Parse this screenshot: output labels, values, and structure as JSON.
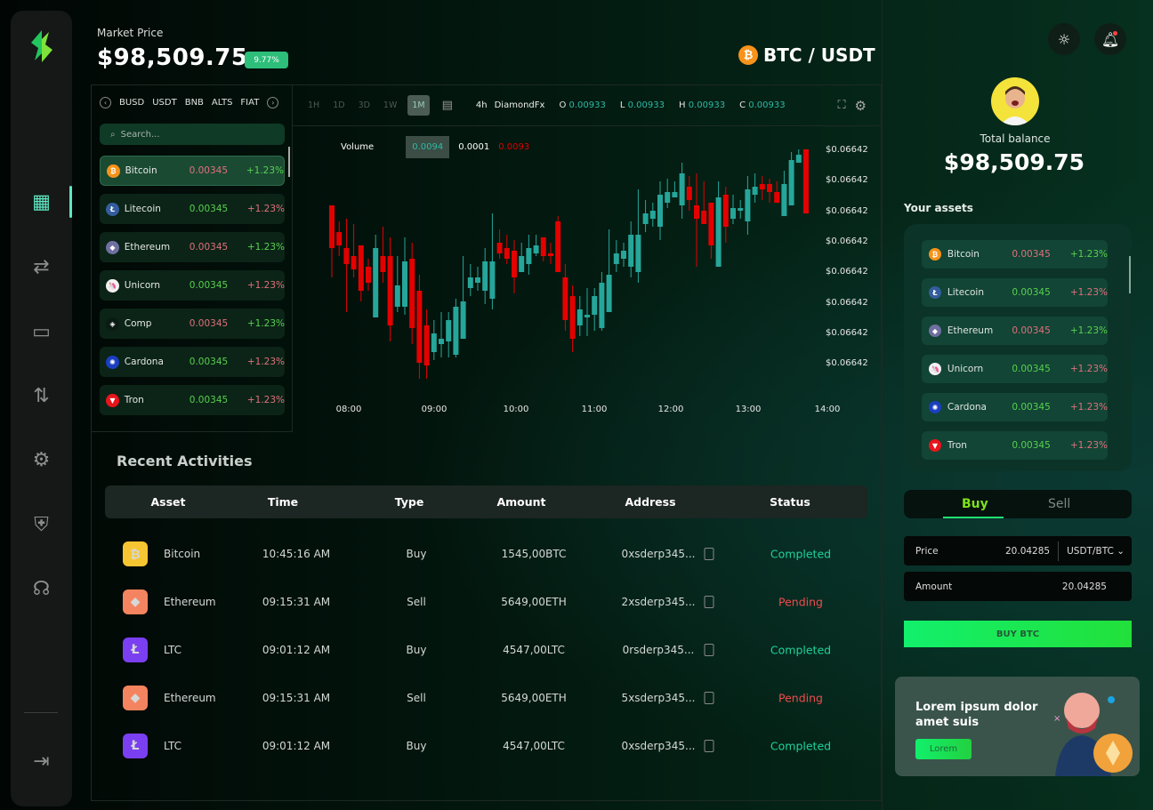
{
  "header": {
    "market_price_label": "Market Price",
    "market_price": "$98,509.75",
    "change_badge": "9.77%",
    "pair": "BTC / USDT",
    "pair_icon": "bitcoin-icon"
  },
  "sidebar": {
    "items": [
      {
        "icon": "dashboard-icon",
        "active": true
      },
      {
        "icon": "transfer-icon"
      },
      {
        "icon": "wallet-icon"
      },
      {
        "icon": "exchange-icon"
      },
      {
        "icon": "settings-icon"
      },
      {
        "icon": "shield-icon"
      },
      {
        "icon": "support-icon"
      }
    ],
    "logout_icon": "logout-icon"
  },
  "markets": {
    "tabs": [
      "BUSD",
      "USDT",
      "BNB",
      "ALTS",
      "FIAT"
    ],
    "search_placeholder": "Search...",
    "coins": [
      {
        "name": "Bitcoin",
        "price": "0.00345",
        "change": "+1.23%",
        "price_color": "red",
        "change_color": "green",
        "icon_color": "#f7931a",
        "glyph": "₿"
      },
      {
        "name": "Litecoin",
        "price": "0.00345",
        "change": "+1.23%",
        "price_color": "green",
        "change_color": "red",
        "icon_color": "#345d9d",
        "glyph": "Ł"
      },
      {
        "name": "Ethereum",
        "price": "0.00345",
        "change": "+1.23%",
        "price_color": "red",
        "change_color": "green",
        "icon_color": "#6f6fa0",
        "glyph": "◆"
      },
      {
        "name": "Unicorn",
        "price": "0.00345",
        "change": "+1.23%",
        "price_color": "green",
        "change_color": "red",
        "icon_color": "#f5f0f2",
        "glyph": "🦄"
      },
      {
        "name": "Comp",
        "price": "0.00345",
        "change": "+1.23%",
        "price_color": "red",
        "change_color": "green",
        "icon_color": "#0a1a14",
        "glyph": "◈"
      },
      {
        "name": "Cardona",
        "price": "0.00345",
        "change": "+1.23%",
        "price_color": "green",
        "change_color": "red",
        "icon_color": "#1b3fc0",
        "glyph": "✺"
      },
      {
        "name": "Tron",
        "price": "0.00345",
        "change": "+1.23%",
        "price_color": "green",
        "change_color": "red",
        "icon_color": "#e8141c",
        "glyph": "▼"
      }
    ]
  },
  "chart_toolbar": {
    "timeframes": [
      "1H",
      "1D",
      "3D",
      "1W",
      "1M"
    ],
    "active_timeframe": "1M",
    "interval": "4h",
    "source": "DiamondFx",
    "o_label": "O",
    "o": "0.00933",
    "l_label": "L",
    "l": "0.00933",
    "h_label": "H",
    "h": "0.00933",
    "c_label": "C",
    "c": "0.00933"
  },
  "chart_data": {
    "type": "candlestick",
    "volume_label": "Volume",
    "volume_values": [
      "0.0094",
      "0.0001",
      "0.0093"
    ],
    "y_tick_labels": [
      "$0.06642",
      "$0.06642",
      "$0.06642",
      "$0.06642",
      "$0.06642",
      "$0.06642",
      "$0.06642",
      "$0.06642"
    ],
    "x_tick_labels": [
      "08:00",
      "09:00",
      "10:00",
      "11:00",
      "12:00",
      "13:00",
      "14:00"
    ],
    "colors": {
      "up": "#26a69a",
      "down": "#e50000"
    },
    "candles": [
      [
        73,
        73,
        46,
        57
      ],
      [
        63,
        67,
        54,
        58
      ],
      [
        57,
        68,
        33,
        51
      ],
      [
        54,
        66,
        46,
        49
      ],
      [
        58,
        58,
        37,
        41
      ],
      [
        50,
        53,
        41,
        44
      ],
      [
        31,
        62,
        31,
        57
      ],
      [
        54,
        65,
        44,
        48
      ],
      [
        54,
        61,
        22,
        28
      ],
      [
        35,
        54,
        33,
        43
      ],
      [
        35,
        61,
        32,
        52
      ],
      [
        53,
        59,
        21,
        27
      ],
      [
        41,
        47,
        8,
        14
      ],
      [
        28,
        34,
        8,
        13
      ],
      [
        18,
        30,
        15,
        25
      ],
      [
        21,
        33,
        16,
        23
      ],
      [
        22,
        33,
        16,
        30
      ],
      [
        17,
        38,
        16,
        35
      ],
      [
        23,
        54,
        23,
        37
      ],
      [
        42,
        51,
        39,
        46
      ],
      [
        44,
        50,
        41,
        46
      ],
      [
        41,
        57,
        36,
        52
      ],
      [
        38,
        70,
        34,
        52
      ],
      [
        59,
        64,
        53,
        55
      ],
      [
        57,
        62,
        51,
        53
      ],
      [
        56,
        60,
        40,
        46
      ],
      [
        48,
        59,
        48,
        54
      ],
      [
        51,
        62,
        47,
        57
      ],
      [
        55,
        62,
        54,
        58
      ],
      [
        61,
        61,
        52,
        54
      ],
      [
        55,
        59,
        51,
        54
      ],
      [
        67,
        69,
        48,
        48
      ],
      [
        46,
        51,
        26,
        30
      ],
      [
        39,
        43,
        18,
        23
      ],
      [
        28,
        39,
        24,
        34
      ],
      [
        31,
        42,
        24,
        32
      ],
      [
        32,
        42,
        26,
        39
      ],
      [
        27,
        48,
        26,
        44
      ],
      [
        33,
        64,
        33,
        47
      ],
      [
        51,
        60,
        48,
        55
      ],
      [
        53,
        59,
        50,
        56
      ],
      [
        50,
        67,
        46,
        62
      ],
      [
        48,
        79,
        44,
        62
      ],
      [
        66,
        75,
        63,
        70
      ],
      [
        68,
        74,
        65,
        71
      ],
      [
        65,
        82,
        60,
        77
      ],
      [
        74,
        83,
        72,
        78
      ],
      [
        76,
        82,
        76,
        78
      ],
      [
        73,
        89,
        68,
        85
      ],
      [
        80,
        84,
        71,
        75
      ],
      [
        73,
        85,
        50,
        68
      ],
      [
        71,
        82,
        66,
        66
      ],
      [
        74,
        74,
        53,
        58
      ],
      [
        50,
        82,
        50,
        76
      ],
      [
        77,
        80,
        59,
        65
      ],
      [
        68,
        77,
        66,
        72
      ],
      [
        71,
        75,
        68,
        72
      ],
      [
        67,
        84,
        62,
        79
      ],
      [
        77,
        85,
        74,
        80
      ],
      [
        81,
        84,
        75,
        79
      ],
      [
        81,
        83,
        74,
        78
      ],
      [
        78,
        82,
        74,
        74
      ],
      [
        69,
        86,
        69,
        81
      ],
      [
        73,
        93,
        73,
        90
      ],
      [
        89,
        94,
        89,
        92
      ],
      [
        94,
        94,
        70,
        70
      ]
    ]
  },
  "activities": {
    "title": "Recent Activities",
    "columns": [
      "Asset",
      "Time",
      "Type",
      "Amount",
      "Address",
      "Status"
    ],
    "rows": [
      {
        "asset": "Bitcoin",
        "time": "10:45:16 AM",
        "type": "Buy",
        "amount": "1545,00BTC",
        "address": "0xsderp345...",
        "status": "Completed",
        "icon_color": "#f7c531",
        "glyph": "₿"
      },
      {
        "asset": "Ethereum",
        "time": "09:15:31 AM",
        "type": "Sell",
        "amount": "5649,00ETH",
        "address": "2xsderp345...",
        "status": "Pending",
        "icon_color": "#f4845f",
        "glyph": "◆"
      },
      {
        "asset": "LTC",
        "time": "09:01:12 AM",
        "type": "Buy",
        "amount": "4547,00LTC",
        "address": "0rsderp345...",
        "status": "Completed",
        "icon_color": "#7b3ff2",
        "glyph": "Ł"
      },
      {
        "asset": "Ethereum",
        "time": "09:15:31 AM",
        "type": "Sell",
        "amount": "5649,00ETH",
        "address": "5xsderp345...",
        "status": "Pending",
        "icon_color": "#f4845f",
        "glyph": "◆"
      },
      {
        "asset": "LTC",
        "time": "09:01:12 AM",
        "type": "Buy",
        "amount": "4547,00LTC",
        "address": "0xsderp345...",
        "status": "Completed",
        "icon_color": "#7b3ff2",
        "glyph": "Ł"
      }
    ]
  },
  "profile": {
    "total_balance_label": "Total balance",
    "total_balance": "$98,509.75",
    "theme_icon": "sun-icon",
    "notification_icon": "bell-icon"
  },
  "assets": {
    "title": "Your assets",
    "items": [
      {
        "name": "Bitcoin",
        "price": "0.00345",
        "change": "+1.23%",
        "price_color": "red",
        "change_color": "green",
        "icon_color": "#f7931a",
        "glyph": "₿"
      },
      {
        "name": "Litecoin",
        "price": "0.00345",
        "change": "+1.23%",
        "price_color": "green",
        "change_color": "red",
        "icon_color": "#345d9d",
        "glyph": "Ł"
      },
      {
        "name": "Ethereum",
        "price": "0.00345",
        "change": "+1.23%",
        "price_color": "red",
        "change_color": "green",
        "icon_color": "#6f6fa0",
        "glyph": "◆"
      },
      {
        "name": "Unicorn",
        "price": "0.00345",
        "change": "+1.23%",
        "price_color": "green",
        "change_color": "red",
        "icon_color": "#f5f0f2",
        "glyph": "🦄"
      },
      {
        "name": "Cardona",
        "price": "0.00345",
        "change": "+1.23%",
        "price_color": "green",
        "change_color": "red",
        "icon_color": "#1b3fc0",
        "glyph": "✺"
      },
      {
        "name": "Tron",
        "price": "0.00345",
        "change": "+1.23%",
        "price_color": "green",
        "change_color": "red",
        "icon_color": "#e8141c",
        "glyph": "▼"
      }
    ]
  },
  "trade": {
    "buy_tab": "Buy",
    "sell_tab": "Sell",
    "active_tab": "Buy",
    "price_label": "Price",
    "price_value": "20.04285",
    "pair_select": "USDT/BTC",
    "amount_label": "Amount",
    "amount_value": "20.04285",
    "buy_button": "BUY BTC"
  },
  "promo": {
    "text": "Lorem ipsum dolor amet suis",
    "button": "Lorem"
  }
}
